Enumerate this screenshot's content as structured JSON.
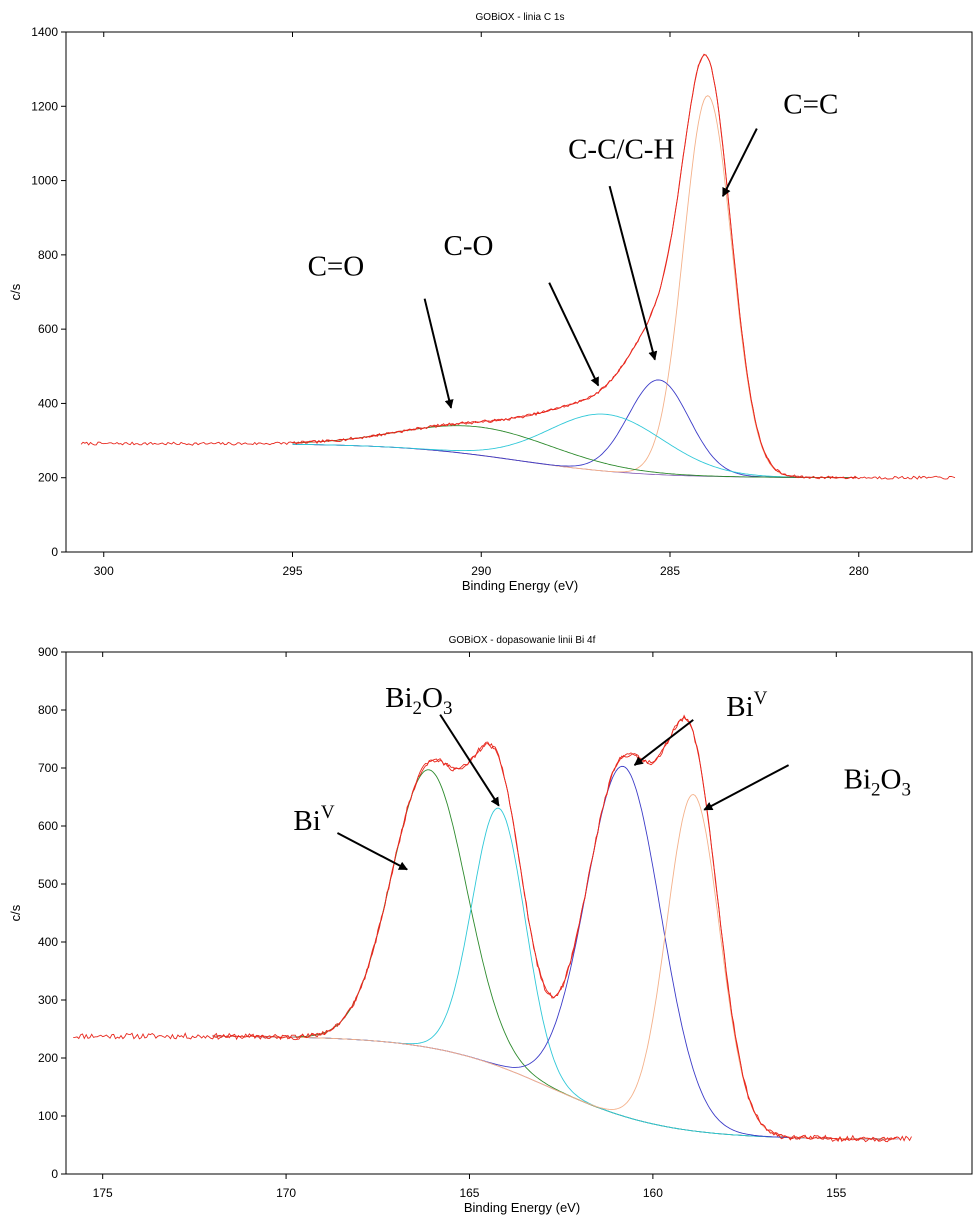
{
  "chart_data": [
    {
      "type": "line",
      "title": "GOBiOX - linia C 1s",
      "xlabel": "Binding Energy (eV)",
      "ylabel": "c/s",
      "x_reversed": true,
      "xlim": [
        301,
        277
      ],
      "ylim": [
        0,
        1400
      ],
      "x_ticks": [
        300,
        295,
        290,
        285,
        280
      ],
      "y_ticks": [
        0,
        200,
        400,
        600,
        800,
        1000,
        1200,
        1400
      ],
      "grid": false,
      "legend": "none",
      "data_range": {
        "wide": [
          300.6,
          277.4
        ],
        "fit": [
          295,
          280
        ]
      },
      "background": {
        "type": "shirley",
        "high": 292,
        "low": 200,
        "center": 289
      },
      "peaks": [
        {
          "component": "C=C",
          "position": 284.0,
          "amplitude": 1025,
          "fwhm": 1.5,
          "color": "#f4b18a"
        },
        {
          "component": "C-C/C-H",
          "position": 285.3,
          "amplitude": 255,
          "fwhm": 1.9,
          "color": "#3c3cc8"
        },
        {
          "component": "C-O",
          "position": 286.7,
          "amplitude": 153,
          "fwhm": 3.6,
          "color": "#30c8d8"
        },
        {
          "component": "C=O",
          "position": 290.0,
          "amplitude": 76,
          "fwhm": 4.8,
          "color": "#2e8b2e"
        }
      ],
      "envelope_color": "#e8281e",
      "annotations": [
        {
          "label": "C=C",
          "text_at": [
            282.0,
            1180
          ],
          "arrow_from": [
            282.7,
            1140
          ],
          "arrow_to": [
            283.6,
            958
          ]
        },
        {
          "label": "C-C/C-H",
          "text_at": [
            287.7,
            1060
          ],
          "arrow_from": [
            286.6,
            985
          ],
          "arrow_to": [
            285.4,
            518
          ]
        },
        {
          "label": "C-O",
          "text_at": [
            291.0,
            800
          ],
          "arrow_from": [
            288.2,
            725
          ],
          "arrow_to": [
            286.9,
            448
          ]
        },
        {
          "label": "C=O",
          "text_at": [
            294.6,
            745
          ],
          "arrow_from": [
            291.5,
            682
          ],
          "arrow_to": [
            290.8,
            388
          ]
        }
      ]
    },
    {
      "type": "line",
      "title": "GOBiOX - dopasowanie linii Bi 4f",
      "xlabel": "Binding Energy (eV)",
      "ylabel": "c/s",
      "x_reversed": true,
      "xlim": [
        176,
        151.3
      ],
      "ylim": [
        0,
        900
      ],
      "x_ticks": [
        175,
        170,
        165,
        160,
        155
      ],
      "y_ticks": [
        0,
        100,
        200,
        300,
        400,
        500,
        600,
        700,
        800,
        900
      ],
      "grid": false,
      "legend": "none",
      "data_range": {
        "wide": [
          175.8,
          152.9
        ],
        "fit": [
          172,
          153.3
        ]
      },
      "background": {
        "type": "shirley",
        "high": 238,
        "low": 60,
        "center": 162.8
      },
      "peaks": [
        {
          "component": "BiV",
          "position": 166.1,
          "amplitude": 479,
          "fwhm": 2.4,
          "color": "#2e8b2e"
        },
        {
          "component": "Bi2O3",
          "position": 164.2,
          "amplitude": 445,
          "fwhm": 1.7,
          "color": "#30c8d8"
        },
        {
          "component": "BiV",
          "position": 160.8,
          "amplitude": 603,
          "fwhm": 2.4,
          "color": "#3c3cc8"
        },
        {
          "component": "Bi2O3",
          "position": 158.9,
          "amplitude": 580,
          "fwhm": 1.7,
          "color": "#f4b18a"
        }
      ],
      "envelope_color": "#e8281e",
      "annotations": [
        {
          "label": "BiV",
          "text_at": [
            169.8,
            593
          ],
          "arrow_from": [
            168.6,
            588
          ],
          "arrow_to": [
            166.7,
            525
          ]
        },
        {
          "label": "Bi2O3",
          "text_at": [
            167.3,
            805
          ],
          "arrow_from": [
            165.8,
            792
          ],
          "arrow_to": [
            164.2,
            635
          ]
        },
        {
          "label": "BiV",
          "text_at": [
            158.0,
            790
          ],
          "arrow_from": [
            158.9,
            783
          ],
          "arrow_to": [
            160.5,
            705
          ]
        },
        {
          "label": "Bi2O3",
          "text_at": [
            154.8,
            665
          ],
          "arrow_from": [
            156.3,
            705
          ],
          "arrow_to": [
            158.6,
            628
          ]
        }
      ]
    }
  ]
}
